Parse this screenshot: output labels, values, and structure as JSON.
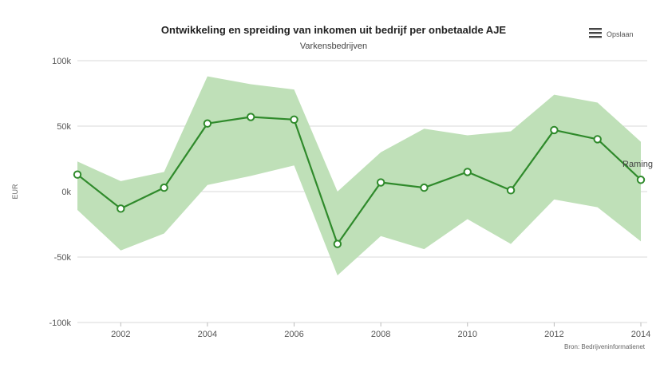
{
  "chart_data": {
    "type": "area",
    "title": "Ontwikkeling en spreiding van inkomen uit bedrijf per onbetaalde AJE",
    "subtitle": "Varkensbedrijven",
    "ylabel": "EUR",
    "xlabel": "",
    "xlim": [
      2001,
      2014
    ],
    "ylim": [
      -100000,
      100000
    ],
    "x_ticks": [
      2002,
      2004,
      2006,
      2008,
      2010,
      2012,
      2014
    ],
    "y_ticks": [
      -100000,
      -50000,
      0,
      50000,
      100000
    ],
    "x_tick_labels": [
      "2002",
      "2004",
      "2006",
      "2008",
      "2010",
      "2012",
      "2014"
    ],
    "y_tick_labels": [
      "-100k",
      "-50k",
      "0k",
      "50k",
      "100k"
    ],
    "grid": "horizontal",
    "colors": {
      "line": "#2f8a2b",
      "band": "#bfe0b8",
      "marker_fill": "#ffffff",
      "grid": "#d9d9d9"
    },
    "x": [
      2001,
      2002,
      2003,
      2004,
      2005,
      2006,
      2007,
      2008,
      2009,
      2010,
      2011,
      2012,
      2013,
      2014
    ],
    "series": [
      {
        "type": "arearange",
        "low": [
          -14000,
          -45000,
          -32000,
          5000,
          12000,
          20000,
          -64000,
          -34000,
          -44000,
          -21000,
          -40000,
          -6000,
          -12000,
          -38000
        ],
        "high": [
          23000,
          8000,
          15000,
          88000,
          82000,
          78000,
          0,
          30000,
          48000,
          43000,
          46000,
          74000,
          68000,
          38000
        ]
      },
      {
        "type": "line",
        "values": [
          13000,
          -13000,
          3000,
          52000,
          57000,
          55000,
          -40000,
          7000,
          3000,
          15000,
          1000,
          47000,
          40000,
          9000
        ]
      }
    ],
    "annotations": [
      {
        "text": "Raming",
        "x": 2014,
        "y": 9000
      }
    ],
    "credit": "Bron: Bedrijveninformatienet",
    "menu_label": "Opslaan"
  }
}
